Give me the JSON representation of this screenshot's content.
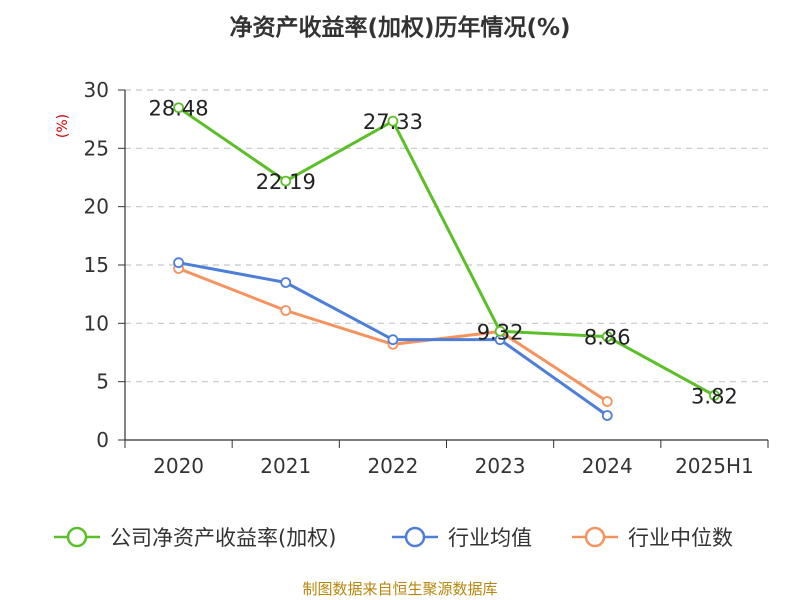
{
  "header": {
    "title": "净资产收益率(加权)历年情况(%)"
  },
  "y_unit": "(%)",
  "footer": {
    "source": "制图数据来自恒生聚源数据库"
  },
  "legend": [
    {
      "label": "公司净资产收益率(加权)",
      "color": "#5cbf2a"
    },
    {
      "label": "行业均值",
      "color": "#4e7fd8"
    },
    {
      "label": "行业中位数",
      "color": "#f5935f"
    }
  ],
  "chart_data": {
    "type": "line",
    "title": "净资产收益率(加权)历年情况(%)",
    "ylabel": "(%)",
    "xlabel": "",
    "categories": [
      "2020",
      "2021",
      "2022",
      "2023",
      "2024",
      "2025H1"
    ],
    "ylim": [
      0,
      30
    ],
    "yticks": [
      0,
      5,
      10,
      15,
      20,
      25,
      30
    ],
    "grid": true,
    "legend_position": "bottom",
    "series": [
      {
        "name": "公司净资产收益率(加权)",
        "color": "#5cbf2a",
        "values": [
          28.48,
          22.19,
          27.33,
          9.32,
          8.86,
          3.82
        ],
        "labels": [
          "28.48",
          "22.19",
          "27.33",
          "9.32",
          "8.86",
          "3.82"
        ]
      },
      {
        "name": "行业均值",
        "color": "#4e7fd8",
        "values": [
          15.2,
          13.5,
          8.6,
          8.6,
          2.1,
          null
        ]
      },
      {
        "name": "行业中位数",
        "color": "#f5935f",
        "values": [
          14.7,
          11.1,
          8.2,
          9.3,
          3.3,
          null
        ]
      }
    ]
  }
}
